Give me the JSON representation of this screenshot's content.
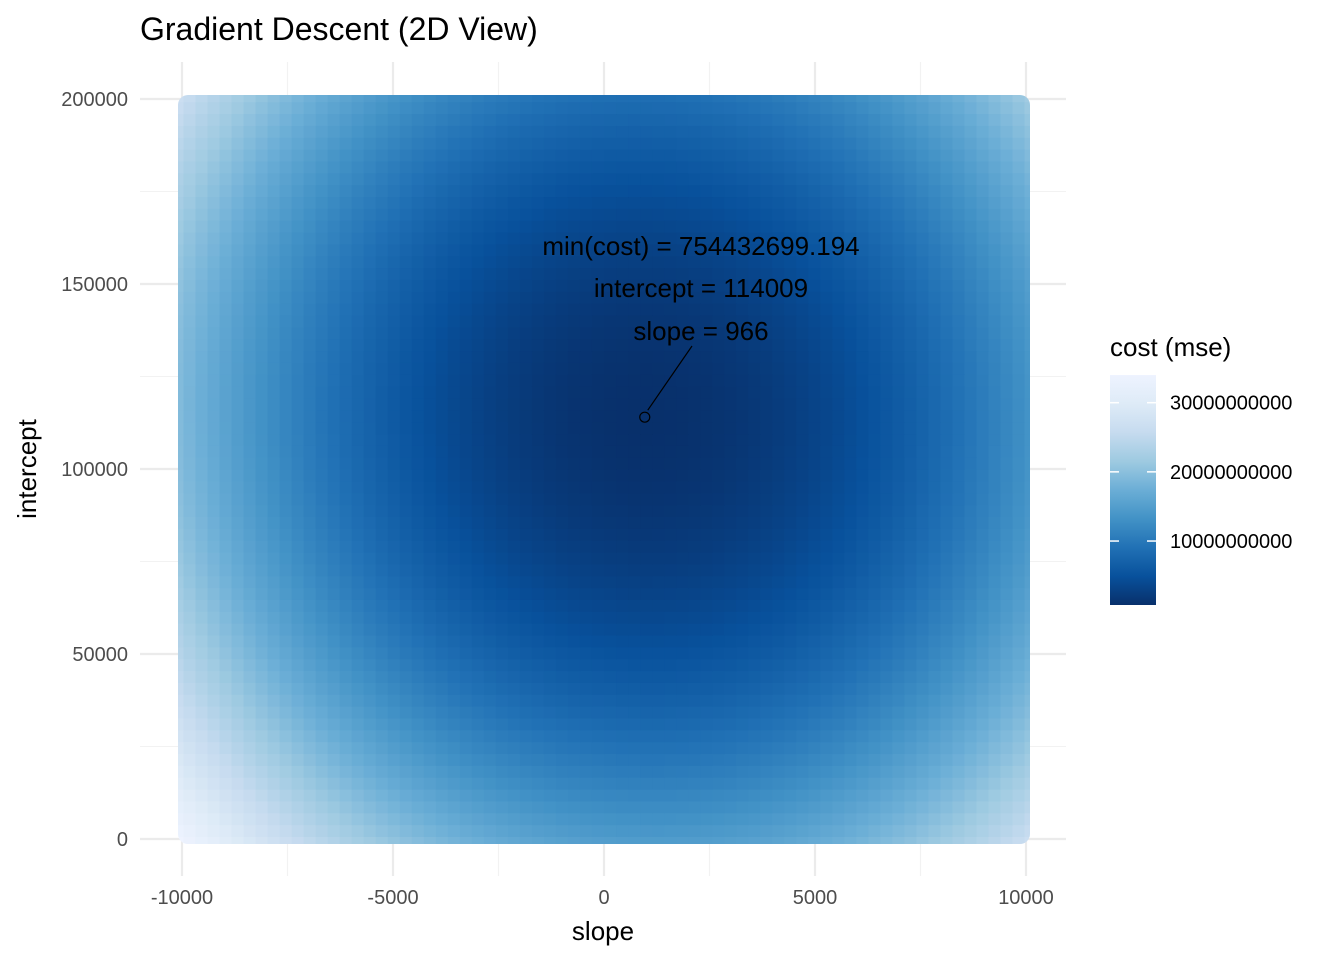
{
  "chart_data": {
    "type": "heatmap",
    "title": "Gradient Descent (2D View)",
    "xlabel": "slope",
    "ylabel": "intercept",
    "xlim": [
      -10000,
      10000
    ],
    "ylim": [
      0,
      200000
    ],
    "x_ticks": [
      -10000,
      -5000,
      0,
      5000,
      10000
    ],
    "x_tick_labels": [
      "-10000",
      "-5000",
      "0",
      "5000",
      "10000"
    ],
    "y_ticks": [
      0,
      50000,
      100000,
      150000,
      200000
    ],
    "y_tick_labels": [
      "0",
      "50000",
      "100000",
      "150000",
      "200000"
    ],
    "grid": true,
    "surface": {
      "description_of_field": "cost (mse) over slope and intercept",
      "minimum": {
        "slope": 966,
        "intercept": 114009,
        "cost": 754432699.194
      },
      "corner_costs": {
        "slope_-10000_intercept_0": 33500000000,
        "slope_10000_intercept_0": 26000000000,
        "slope_-10000_intercept_200000": 26000000000,
        "slope_10000_intercept_200000": 21000000000
      }
    },
    "legend": {
      "title": "cost (mse)",
      "position": "right",
      "min": 754432699.194,
      "max": 34000000000,
      "ticks": [
        10000000000,
        20000000000,
        30000000000
      ],
      "tick_labels": [
        "10000000000",
        "20000000000",
        "30000000000"
      ],
      "colors": [
        "#08306b",
        "#08519c",
        "#2171b5",
        "#4292c6",
        "#6baed6",
        "#9ecae1",
        "#c6dbef",
        "#deebf7",
        "#eef3ff"
      ]
    },
    "annotation": {
      "lines": [
        "min(cost) = 754432699.194",
        "intercept = 114009",
        "slope = 966"
      ],
      "point": {
        "slope": 966,
        "intercept": 114009
      }
    }
  }
}
